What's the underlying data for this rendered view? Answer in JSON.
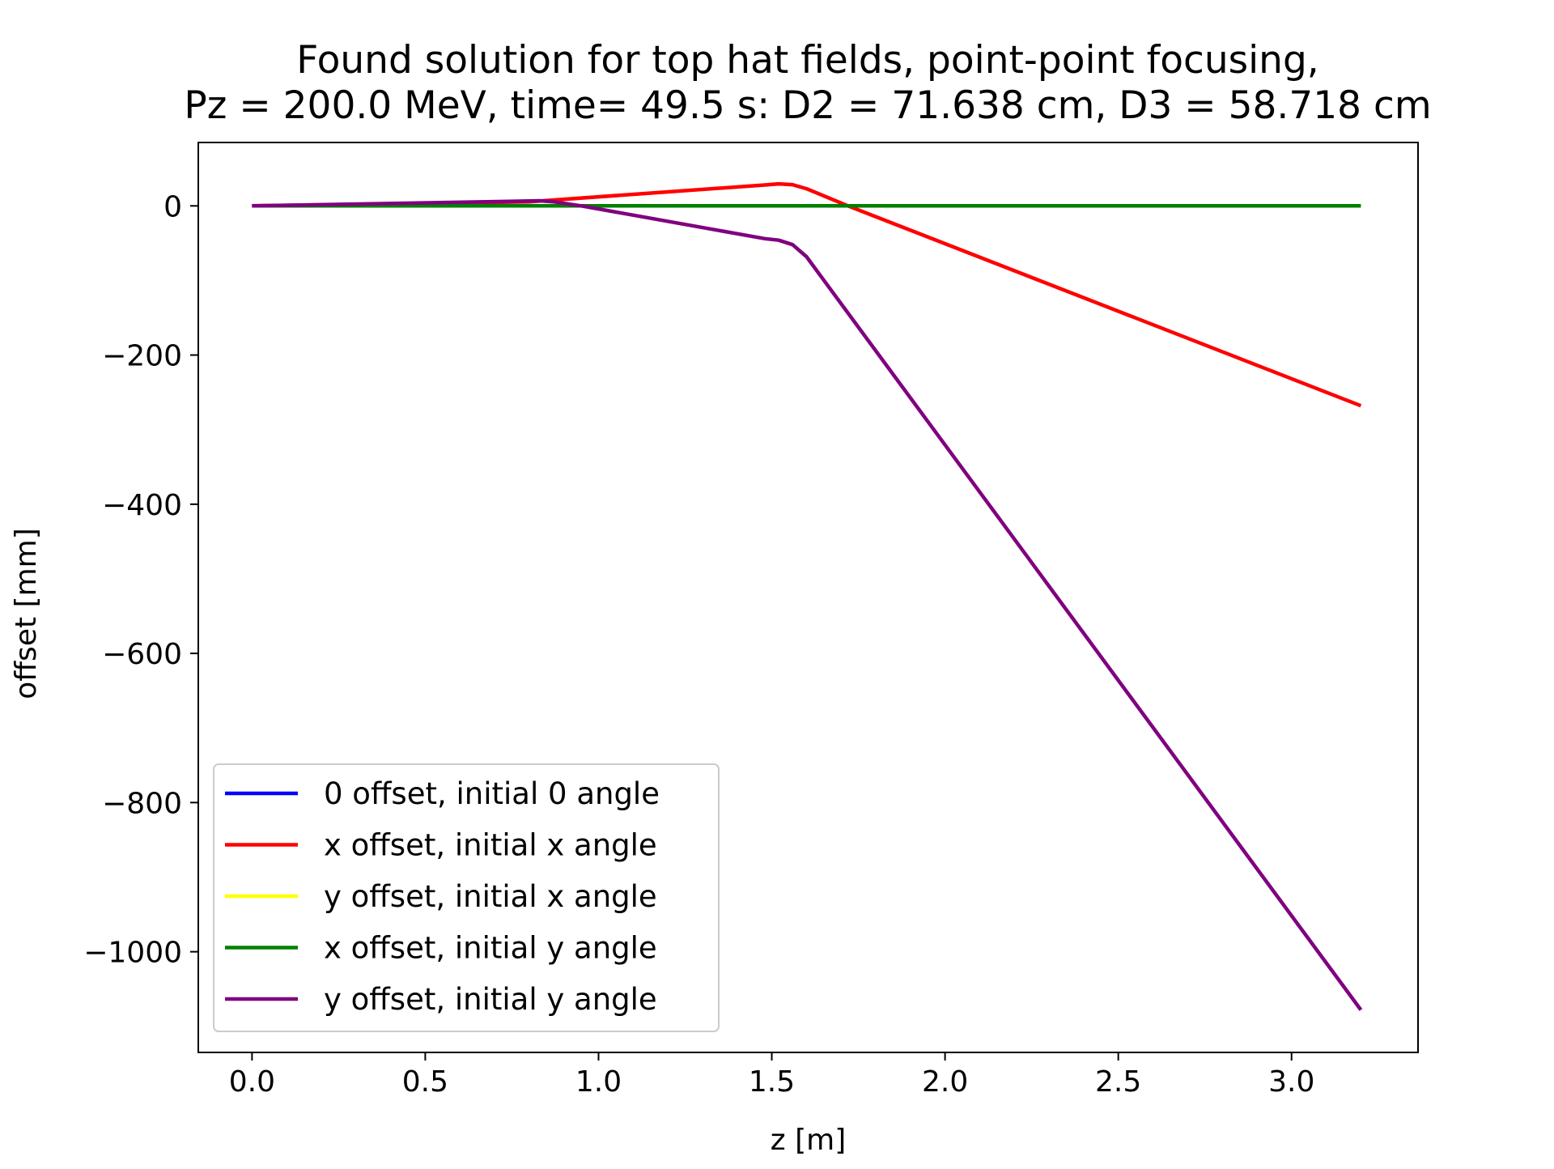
{
  "chart_data": {
    "type": "line",
    "title": [
      "Found solution for top hat fields, point-point focusing,",
      "Pz = 200.0 MeV, time= 49.5 s: D2 = 71.638 cm, D3 = 58.718 cm"
    ],
    "xlabel": "z [m]",
    "ylabel": "offset [mm]",
    "xlim": [
      -0.155,
      3.365
    ],
    "ylim": [
      -1135,
      85
    ],
    "xticks": [
      0.0,
      0.5,
      1.0,
      1.5,
      2.0,
      2.5,
      3.0
    ],
    "xtick_labels": [
      "0.0",
      "0.5",
      "1.0",
      "1.5",
      "2.0",
      "2.5",
      "3.0"
    ],
    "yticks": [
      0,
      -200,
      -400,
      -600,
      -800,
      -1000
    ],
    "ytick_labels": [
      "0",
      "−200",
      "−400",
      "−600",
      "−800",
      "−1000"
    ],
    "grid": false,
    "legend_position": "lower-left",
    "series": [
      {
        "name": "0 offset, initial 0 angle",
        "color": "#0000ff",
        "x": [
          0.0,
          3.2
        ],
        "y": [
          0,
          0
        ]
      },
      {
        "name": "x offset, initial x angle",
        "color": "#ff0000",
        "x": [
          0.0,
          0.8,
          1.48,
          1.52,
          1.56,
          1.6,
          1.72,
          3.2
        ],
        "y": [
          0,
          5.5,
          28,
          29.5,
          28.5,
          23,
          0,
          -268
        ]
      },
      {
        "name": "y offset, initial x angle",
        "color": "#ffff00",
        "x": [
          0.0,
          3.2
        ],
        "y": [
          0,
          0
        ]
      },
      {
        "name": "x offset, initial y angle",
        "color": "#008000",
        "x": [
          0.0,
          3.2
        ],
        "y": [
          0,
          0
        ]
      },
      {
        "name": "y offset, initial y angle",
        "color": "#800080",
        "x": [
          0.0,
          0.8,
          0.83,
          0.87,
          0.95,
          1.48,
          1.52,
          1.56,
          1.6,
          3.2
        ],
        "y": [
          0,
          6.5,
          6.8,
          5.5,
          0,
          -44,
          -46,
          -52,
          -68,
          -1078
        ]
      }
    ]
  }
}
